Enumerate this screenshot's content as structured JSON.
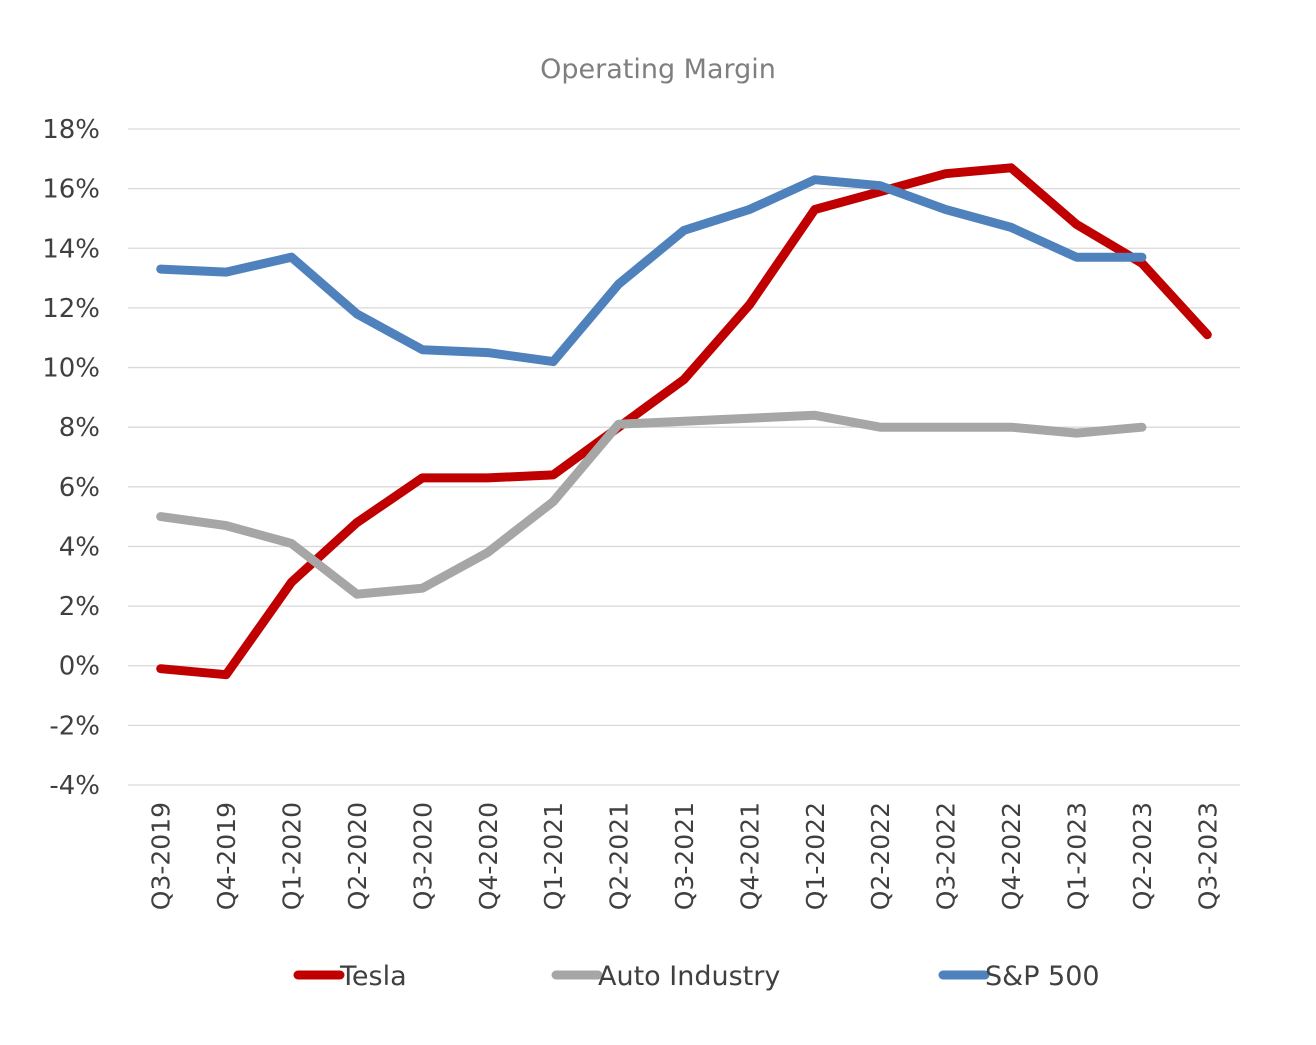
{
  "chart_data": {
    "type": "line",
    "title": "Operating Margin",
    "xlabel": "",
    "ylabel": "",
    "categories": [
      "Q3-2019",
      "Q4-2019",
      "Q1-2020",
      "Q2-2020",
      "Q3-2020",
      "Q4-2020",
      "Q1-2021",
      "Q2-2021",
      "Q3-2021",
      "Q4-2021",
      "Q1-2022",
      "Q2-2022",
      "Q3-2022",
      "Q4-2022",
      "Q1-2023",
      "Q2-2023",
      "Q3-2023"
    ],
    "y_ticks": [
      "18%",
      "16%",
      "14%",
      "12%",
      "10%",
      "8%",
      "6%",
      "4%",
      "2%",
      "0%",
      "-2%",
      "-4%"
    ],
    "ylim": [
      -4,
      18
    ],
    "y_unit": "%",
    "grid": true,
    "legend_position": "bottom",
    "series": [
      {
        "name": "Tesla",
        "color": "#c00000",
        "values": [
          -0.1,
          -0.3,
          2.8,
          4.8,
          6.3,
          6.3,
          6.4,
          8.0,
          9.6,
          12.1,
          15.3,
          15.9,
          16.5,
          16.7,
          14.8,
          13.5,
          11.1
        ]
      },
      {
        "name": "Auto Industry",
        "color": "#a6a6a6",
        "values": [
          5.0,
          4.7,
          4.1,
          2.4,
          2.6,
          3.8,
          5.5,
          8.1,
          8.2,
          8.3,
          8.4,
          8.0,
          8.0,
          8.0,
          7.8,
          8.0,
          null
        ]
      },
      {
        "name": "S&P 500",
        "color": "#4f81bd",
        "values": [
          13.3,
          13.2,
          13.7,
          11.8,
          10.6,
          10.5,
          10.2,
          12.8,
          14.6,
          15.3,
          16.3,
          16.1,
          15.3,
          14.7,
          13.7,
          13.7,
          null
        ]
      }
    ]
  }
}
